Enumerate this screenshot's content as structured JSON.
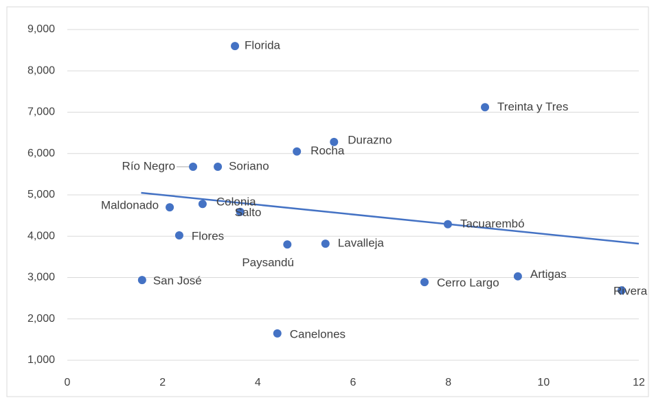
{
  "chart_data": {
    "type": "scatter",
    "labels": [
      "Florida",
      "Treinta y Tres",
      "Durazno",
      "Rocha",
      "Río Negro",
      "Soriano",
      "Maldonado",
      "Colonia",
      "Salto",
      "Tacuarembó",
      "Flores",
      "Paysandú",
      "Lavalleja",
      "San José",
      "Cerro Largo",
      "Artigas",
      "Rivera",
      "Canelones"
    ],
    "x": [
      3.52,
      8.77,
      5.6,
      4.82,
      2.64,
      3.16,
      2.15,
      2.84,
      3.63,
      7.99,
      2.35,
      4.62,
      5.42,
      1.57,
      7.5,
      9.46,
      11.64,
      4.41
    ],
    "values": [
      8600,
      7120,
      6280,
      6050,
      5680,
      5680,
      4700,
      4780,
      4590,
      4290,
      4020,
      3800,
      3820,
      2940,
      2890,
      3030,
      2690,
      1650
    ],
    "color": "#4472c4",
    "trendline": {
      "x": [
        1.55,
        12.0
      ],
      "values": [
        5050,
        3820
      ]
    },
    "xlim": [
      0,
      12
    ],
    "xticks": [
      0,
      2,
      4,
      6,
      8,
      10,
      12
    ],
    "ylim": [
      1000,
      9000
    ],
    "yticks": [
      {
        "value": 1000,
        "label": "1,000"
      },
      {
        "value": 2000,
        "label": "2,000"
      },
      {
        "value": 3000,
        "label": "3,000"
      },
      {
        "value": 4000,
        "label": "4,000"
      },
      {
        "value": 5000,
        "label": "5,000"
      },
      {
        "value": 6000,
        "label": "6,000"
      },
      {
        "value": 7000,
        "label": "7,000"
      },
      {
        "value": 8000,
        "label": "8,000"
      },
      {
        "value": 9000,
        "label": "9,000"
      }
    ],
    "grid": true
  }
}
